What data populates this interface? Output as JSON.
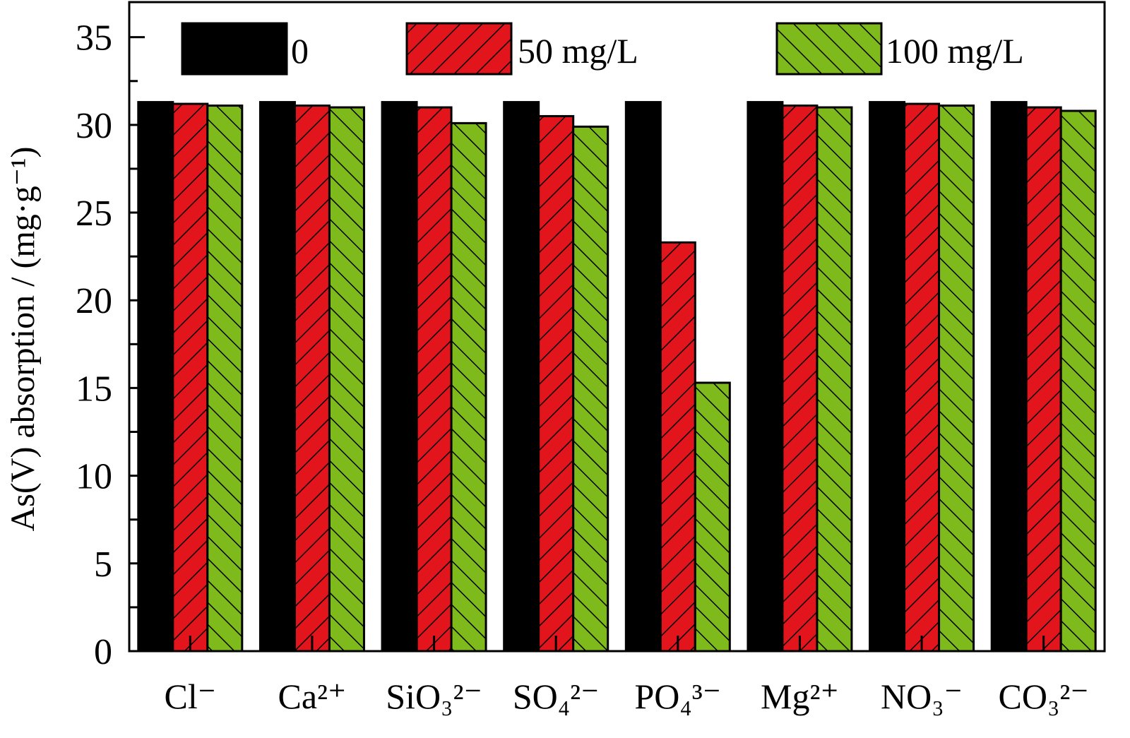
{
  "chart_data": {
    "type": "bar",
    "title": "",
    "xlabel": "",
    "ylabel": "As(V) absorption / (mg·g⁻¹)",
    "ylim": [
      0,
      37
    ],
    "yticks": [
      0,
      5,
      10,
      15,
      20,
      25,
      30,
      35
    ],
    "grid": false,
    "legend_position": "top",
    "categories": [
      "Cl⁻",
      "Ca²⁺",
      "SiO₃²⁻",
      "SO₄²⁻",
      "PO₄³⁻",
      "Mg²⁺",
      "NO₃⁻",
      "CO₃²⁻"
    ],
    "series": [
      {
        "name": "0",
        "color": "#000000",
        "hatch": "none",
        "values": [
          31.3,
          31.3,
          31.3,
          31.3,
          31.3,
          31.3,
          31.3,
          31.3
        ]
      },
      {
        "name": "50 mg/L",
        "color": "#e2141c",
        "hatch": "forward-diagonal",
        "values": [
          31.2,
          31.1,
          31.0,
          30.5,
          23.3,
          31.1,
          31.2,
          31.0
        ]
      },
      {
        "name": "100 mg/L",
        "color": "#7fba1c",
        "hatch": "backward-diagonal",
        "values": [
          31.1,
          31.0,
          30.1,
          29.9,
          15.3,
          31.0,
          31.1,
          30.8
        ]
      }
    ]
  }
}
